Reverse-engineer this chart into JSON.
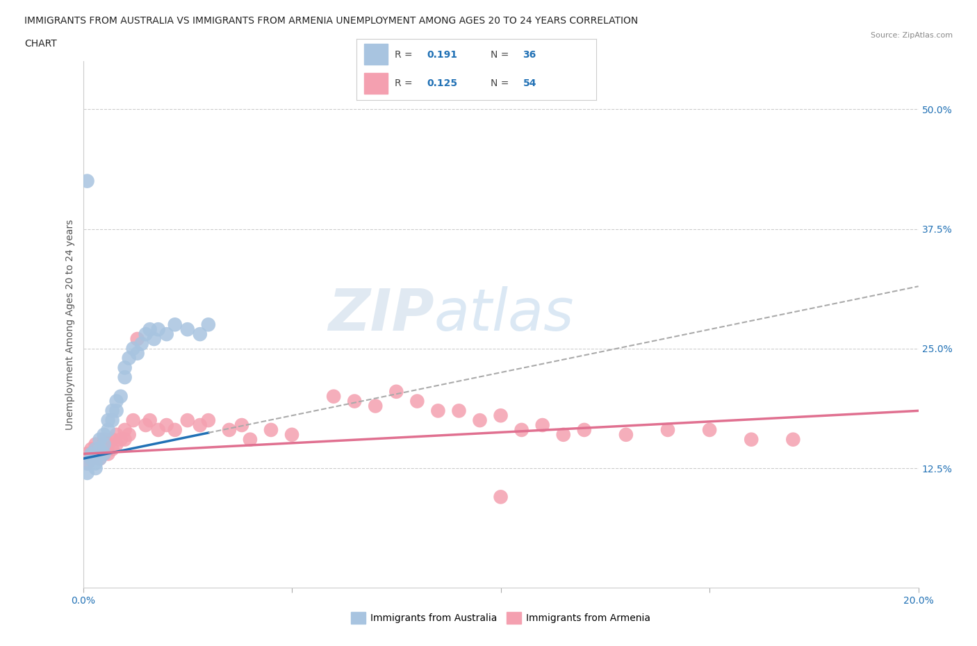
{
  "title_line1": "IMMIGRANTS FROM AUSTRALIA VS IMMIGRANTS FROM ARMENIA UNEMPLOYMENT AMONG AGES 20 TO 24 YEARS CORRELATION",
  "title_line2": "CHART",
  "source_text": "Source: ZipAtlas.com",
  "ylabel": "Unemployment Among Ages 20 to 24 years",
  "xlim": [
    0.0,
    0.2
  ],
  "ylim": [
    0.0,
    0.55
  ],
  "color_australia": "#a8c4e0",
  "color_armenia": "#f4a0b0",
  "color_trendline_australia": "#2171b5",
  "color_trendline_armenia": "#e07090",
  "background_color": "#ffffff",
  "grid_color": "#cccccc",
  "tick_color": "#2171b5",
  "watermark_zip": "ZIP",
  "watermark_atlas": "atlas",
  "australia_x": [
    0.001,
    0.001,
    0.002,
    0.002,
    0.003,
    0.003,
    0.003,
    0.004,
    0.004,
    0.004,
    0.005,
    0.005,
    0.005,
    0.006,
    0.006,
    0.007,
    0.007,
    0.008,
    0.008,
    0.009,
    0.01,
    0.01,
    0.011,
    0.012,
    0.013,
    0.014,
    0.015,
    0.016,
    0.017,
    0.018,
    0.02,
    0.022,
    0.025,
    0.028,
    0.03,
    0.001
  ],
  "australia_y": [
    0.13,
    0.12,
    0.14,
    0.135,
    0.145,
    0.13,
    0.125,
    0.155,
    0.145,
    0.135,
    0.16,
    0.15,
    0.14,
    0.175,
    0.165,
    0.185,
    0.175,
    0.195,
    0.185,
    0.2,
    0.22,
    0.23,
    0.24,
    0.25,
    0.245,
    0.255,
    0.265,
    0.27,
    0.26,
    0.27,
    0.265,
    0.275,
    0.27,
    0.265,
    0.275,
    0.425
  ],
  "armenia_x": [
    0.001,
    0.001,
    0.002,
    0.002,
    0.003,
    0.003,
    0.004,
    0.004,
    0.005,
    0.005,
    0.006,
    0.006,
    0.007,
    0.007,
    0.008,
    0.008,
    0.009,
    0.01,
    0.01,
    0.011,
    0.012,
    0.013,
    0.015,
    0.016,
    0.018,
    0.02,
    0.022,
    0.025,
    0.028,
    0.03,
    0.035,
    0.038,
    0.04,
    0.045,
    0.05,
    0.06,
    0.065,
    0.07,
    0.075,
    0.08,
    0.085,
    0.09,
    0.095,
    0.1,
    0.105,
    0.11,
    0.115,
    0.12,
    0.13,
    0.14,
    0.15,
    0.16,
    0.17,
    0.1
  ],
  "armenia_y": [
    0.14,
    0.13,
    0.145,
    0.135,
    0.15,
    0.14,
    0.145,
    0.135,
    0.155,
    0.145,
    0.15,
    0.14,
    0.155,
    0.145,
    0.16,
    0.15,
    0.155,
    0.165,
    0.155,
    0.16,
    0.175,
    0.26,
    0.17,
    0.175,
    0.165,
    0.17,
    0.165,
    0.175,
    0.17,
    0.175,
    0.165,
    0.17,
    0.155,
    0.165,
    0.16,
    0.2,
    0.195,
    0.19,
    0.205,
    0.195,
    0.185,
    0.185,
    0.175,
    0.18,
    0.165,
    0.17,
    0.16,
    0.165,
    0.16,
    0.165,
    0.165,
    0.155,
    0.155,
    0.095
  ],
  "trendline_aus_x0": 0.0,
  "trendline_aus_y0": 0.135,
  "trendline_aus_x1": 0.2,
  "trendline_aus_y1": 0.315,
  "trendline_aus_solid_end": 0.03,
  "trendline_arm_x0": 0.0,
  "trendline_arm_y0": 0.14,
  "trendline_arm_x1": 0.2,
  "trendline_arm_y1": 0.185
}
